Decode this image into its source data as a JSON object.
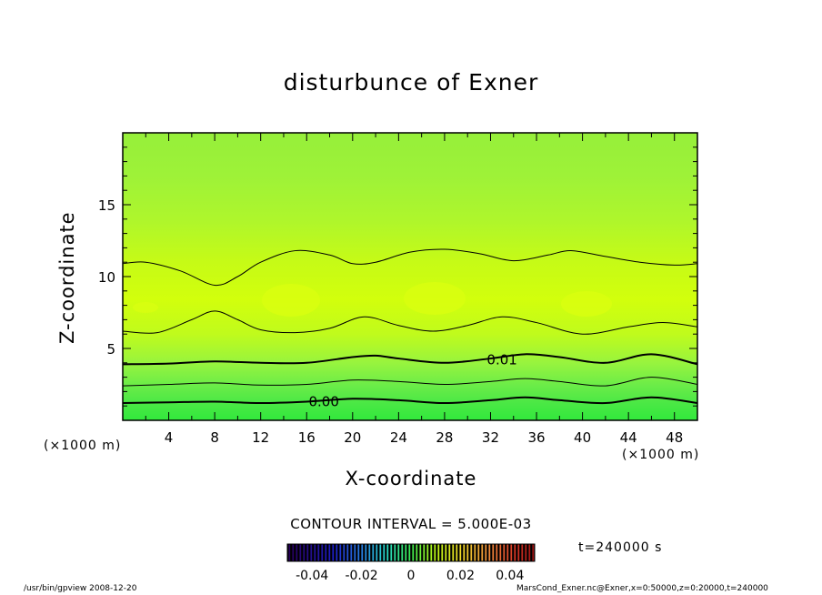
{
  "chart_data": {
    "type": "heatmap",
    "title": "disturbunce of Exner",
    "xlabel": "X-coordinate",
    "ylabel": "Z-coordinate",
    "x_unit": "(×1000 m)",
    "x_ticks": [
      4,
      8,
      12,
      16,
      20,
      24,
      28,
      32,
      36,
      40,
      44,
      48
    ],
    "y_ticks": [
      5,
      10,
      15
    ],
    "xlim": [
      0,
      50
    ],
    "ylim": [
      0,
      20
    ],
    "contour_interval_label": "CONTOUR INTERVAL = 5.000E-03",
    "contour_labels": [
      {
        "text": "0.01",
        "x": 33,
        "z": 4.2
      },
      {
        "text": "0.00",
        "x": 17.5,
        "z": 1.3
      }
    ],
    "contours": [
      {
        "value": 0.0,
        "bold": true,
        "points": [
          [
            0,
            1.2
          ],
          [
            4,
            1.25
          ],
          [
            8,
            1.3
          ],
          [
            12,
            1.2
          ],
          [
            16,
            1.3
          ],
          [
            20,
            1.5
          ],
          [
            24,
            1.4
          ],
          [
            28,
            1.2
          ],
          [
            32,
            1.4
          ],
          [
            35,
            1.6
          ],
          [
            38,
            1.4
          ],
          [
            42,
            1.2
          ],
          [
            46,
            1.6
          ],
          [
            50,
            1.2
          ]
        ]
      },
      {
        "value": 0.005,
        "bold": false,
        "points": [
          [
            0,
            2.4
          ],
          [
            4,
            2.5
          ],
          [
            8,
            2.6
          ],
          [
            12,
            2.45
          ],
          [
            16,
            2.5
          ],
          [
            20,
            2.8
          ],
          [
            24,
            2.7
          ],
          [
            28,
            2.5
          ],
          [
            32,
            2.7
          ],
          [
            35,
            2.9
          ],
          [
            38,
            2.7
          ],
          [
            42,
            2.4
          ],
          [
            46,
            3.0
          ],
          [
            50,
            2.5
          ]
        ]
      },
      {
        "value": 0.01,
        "bold": true,
        "points": [
          [
            0,
            3.9
          ],
          [
            4,
            3.95
          ],
          [
            8,
            4.1
          ],
          [
            12,
            4.0
          ],
          [
            16,
            4.0
          ],
          [
            20,
            4.4
          ],
          [
            22,
            4.5
          ],
          [
            24,
            4.3
          ],
          [
            28,
            4.0
          ],
          [
            32,
            4.3
          ],
          [
            35,
            4.6
          ],
          [
            38,
            4.4
          ],
          [
            42,
            4.0
          ],
          [
            46,
            4.6
          ],
          [
            50,
            3.9
          ]
        ]
      },
      {
        "value": 0.015,
        "bold": false,
        "points": [
          [
            0,
            6.2
          ],
          [
            3,
            6.1
          ],
          [
            6,
            7.0
          ],
          [
            8,
            7.6
          ],
          [
            10,
            7.0
          ],
          [
            12,
            6.3
          ],
          [
            15,
            6.1
          ],
          [
            18,
            6.4
          ],
          [
            21,
            7.2
          ],
          [
            24,
            6.6
          ],
          [
            27,
            6.2
          ],
          [
            30,
            6.6
          ],
          [
            33,
            7.2
          ],
          [
            36,
            6.8
          ],
          [
            40,
            6.0
          ],
          [
            44,
            6.5
          ],
          [
            47,
            6.8
          ],
          [
            50,
            6.5
          ]
        ]
      },
      {
        "value": 0.015,
        "bold": false,
        "points": [
          [
            0,
            10.9
          ],
          [
            2,
            11.0
          ],
          [
            5,
            10.4
          ],
          [
            8,
            9.4
          ],
          [
            10,
            10.0
          ],
          [
            12,
            11.0
          ],
          [
            15,
            11.8
          ],
          [
            18,
            11.5
          ],
          [
            20,
            10.9
          ],
          [
            22,
            11.0
          ],
          [
            25,
            11.7
          ],
          [
            28,
            11.9
          ],
          [
            31,
            11.6
          ],
          [
            34,
            11.1
          ],
          [
            37,
            11.5
          ],
          [
            39,
            11.8
          ],
          [
            42,
            11.4
          ],
          [
            45,
            11.0
          ],
          [
            48,
            10.8
          ],
          [
            50,
            10.9
          ]
        ]
      }
    ],
    "colorbar": {
      "ticks": [
        "-0.04",
        "-0.02",
        "0",
        "0.02",
        "0.04"
      ],
      "range": [
        -0.05,
        0.05
      ]
    }
  },
  "annotations": {
    "time": "t=240000 s",
    "footer_left": "/usr/bin/gpview   2008-12-20",
    "footer_right": "MarsCond_Exner.nc@Exner,x=0:50000,z=0:20000,t=240000"
  }
}
